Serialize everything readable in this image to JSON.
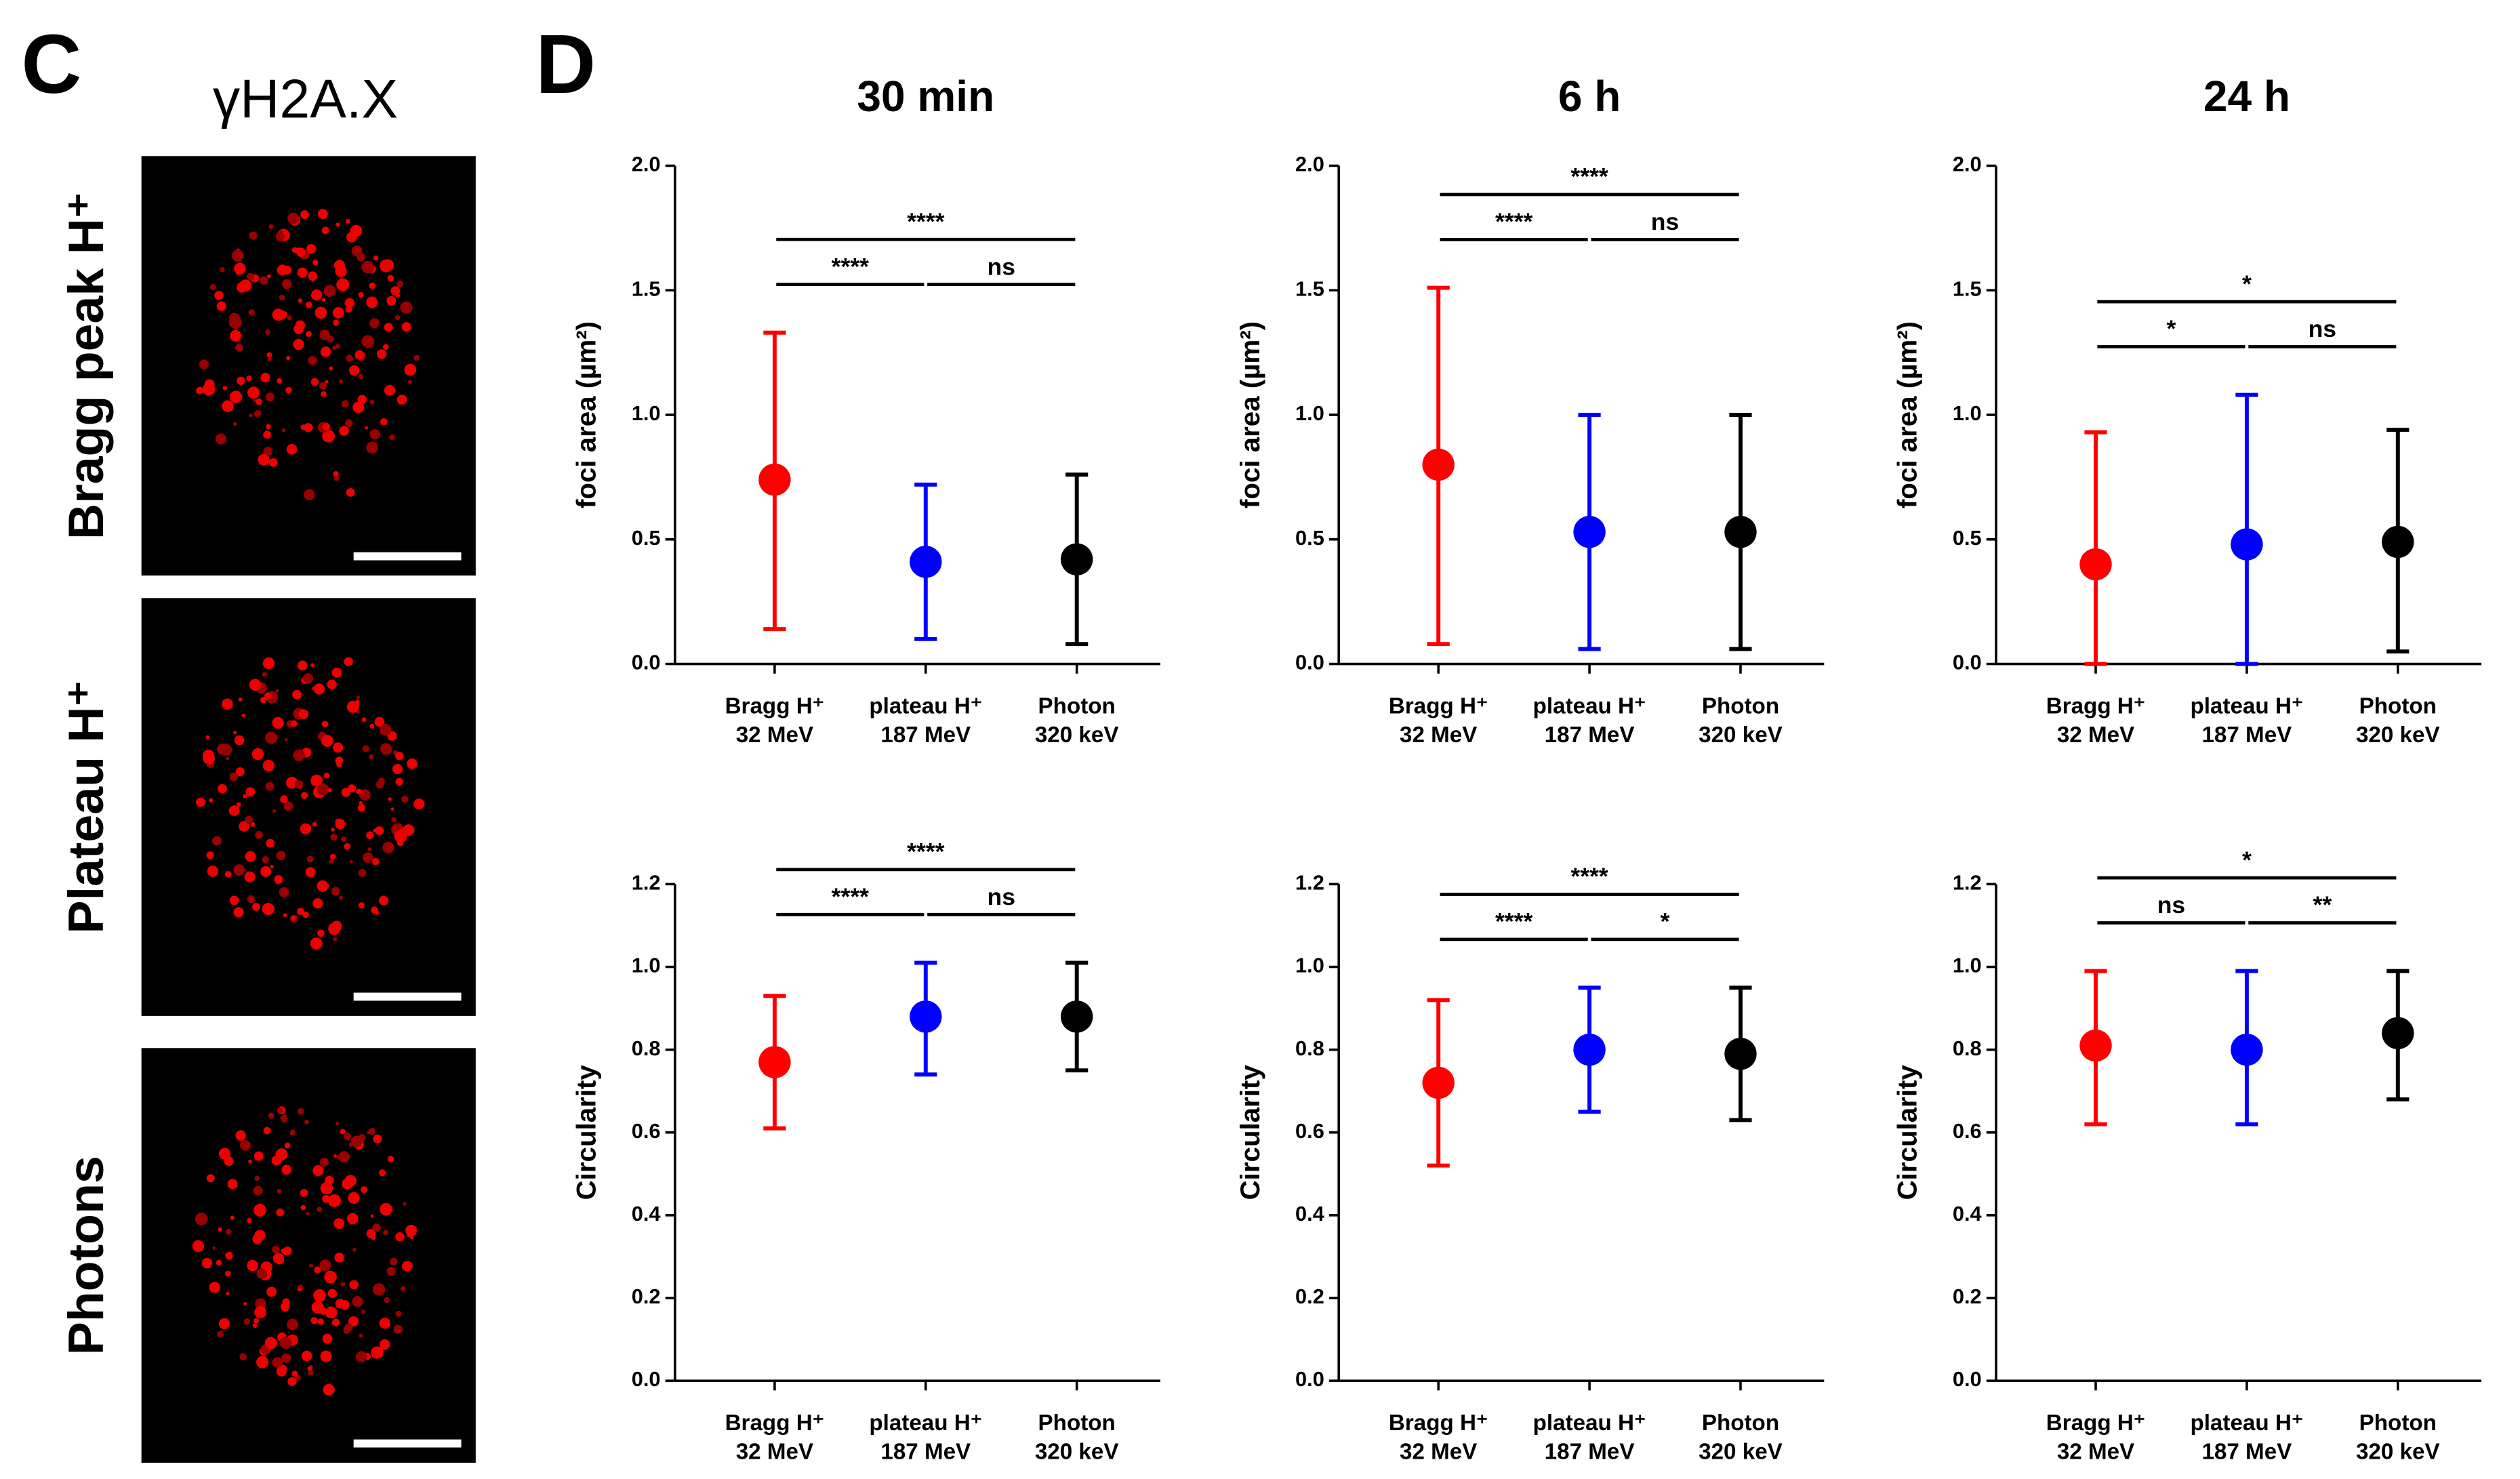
{
  "panels": {
    "left_label": "C",
    "marker": "γH2A.X",
    "rows": [
      "Bragg peak H⁺",
      "Plateau H⁺",
      "Photons"
    ],
    "right_label": "D"
  },
  "chart_data": [
    {
      "type": "errorbar",
      "title": "30 min",
      "ylabel": "foci area (µm²)",
      "categories": [
        "Bragg H⁺",
        "plateau H⁺",
        "Photon"
      ],
      "category_sublabels": [
        "32 MeV",
        "187 MeV",
        "320 keV"
      ],
      "colors": [
        "#ff0000",
        "#0000ff",
        "#000000"
      ],
      "values": [
        0.74,
        0.41,
        0.42
      ],
      "lower": [
        0.14,
        0.1,
        0.08
      ],
      "upper": [
        1.33,
        0.72,
        0.76
      ],
      "ylim": [
        0,
        2
      ],
      "yticks": [
        {
          "value": 0,
          "label": "0.0"
        },
        {
          "value": 0.5,
          "label": "0.5"
        },
        {
          "value": 1,
          "label": "1.0"
        },
        {
          "value": 1.5,
          "label": "1.5"
        },
        {
          "value": 2,
          "label": "2.0"
        }
      ],
      "comparisons": [
        {
          "from": 0,
          "to": 2,
          "label": "****"
        },
        {
          "from": 0,
          "to": 1,
          "label": "****"
        },
        {
          "from": 1,
          "to": 2,
          "label": "ns"
        }
      ]
    },
    {
      "type": "errorbar",
      "title": "6 h",
      "ylabel": "foci area (µm²)",
      "categories": [
        "Bragg H⁺",
        "plateau H⁺",
        "Photon"
      ],
      "category_sublabels": [
        "32 MeV",
        "187 MeV",
        "320 keV"
      ],
      "colors": [
        "#ff0000",
        "#0000ff",
        "#000000"
      ],
      "values": [
        0.8,
        0.53,
        0.53
      ],
      "lower": [
        0.08,
        0.06,
        0.06
      ],
      "upper": [
        1.51,
        1.0,
        1.0
      ],
      "ylim": [
        0,
        2
      ],
      "yticks": [
        {
          "value": 0,
          "label": "0.0"
        },
        {
          "value": 0.5,
          "label": "0.5"
        },
        {
          "value": 1,
          "label": "1.0"
        },
        {
          "value": 1.5,
          "label": "1.5"
        },
        {
          "value": 2,
          "label": "2.0"
        }
      ],
      "comparisons": [
        {
          "from": 0,
          "to": 2,
          "label": "****"
        },
        {
          "from": 0,
          "to": 1,
          "label": "****"
        },
        {
          "from": 1,
          "to": 2,
          "label": "ns"
        }
      ]
    },
    {
      "type": "errorbar",
      "title": "24 h",
      "ylabel": "foci area (µm²)",
      "categories": [
        "Bragg H⁺",
        "plateau H⁺",
        "Photon"
      ],
      "category_sublabels": [
        "32 MeV",
        "187 MeV",
        "320 keV"
      ],
      "colors": [
        "#ff0000",
        "#0000ff",
        "#000000"
      ],
      "values": [
        0.4,
        0.48,
        0.49
      ],
      "lower": [
        0,
        0,
        0.05
      ],
      "upper": [
        0.93,
        1.08,
        0.94
      ],
      "ylim": [
        0,
        2
      ],
      "yticks": [
        {
          "value": 0,
          "label": "0.0"
        },
        {
          "value": 0.5,
          "label": "0.5"
        },
        {
          "value": 1,
          "label": "1.0"
        },
        {
          "value": 1.5,
          "label": "1.5"
        },
        {
          "value": 2,
          "label": "2.0"
        }
      ],
      "comparisons": [
        {
          "from": 0,
          "to": 2,
          "label": "*"
        },
        {
          "from": 0,
          "to": 1,
          "label": "*"
        },
        {
          "from": 1,
          "to": 2,
          "label": "ns"
        }
      ]
    },
    {
      "type": "errorbar",
      "ylabel": "Circularity",
      "categories": [
        "Bragg H⁺",
        "plateau H⁺",
        "Photon"
      ],
      "category_sublabels": [
        "32 MeV",
        "187 MeV",
        "320 keV"
      ],
      "colors": [
        "#ff0000",
        "#0000ff",
        "#000000"
      ],
      "values": [
        0.77,
        0.88,
        0.88
      ],
      "lower": [
        0.61,
        0.74,
        0.75
      ],
      "upper": [
        0.93,
        1.01,
        1.01
      ],
      "ylim": [
        0,
        1.2
      ],
      "yticks": [
        {
          "value": 0,
          "label": "0.0"
        },
        0.2,
        0.4,
        0.6,
        0.8,
        {
          "value": 1,
          "label": "1.0"
        },
        1.2
      ],
      "comparisons": [
        {
          "from": 0,
          "to": 2,
          "label": "****"
        },
        {
          "from": 0,
          "to": 1,
          "label": "****"
        },
        {
          "from": 1,
          "to": 2,
          "label": "ns"
        }
      ]
    },
    {
      "type": "errorbar",
      "ylabel": "Circularity",
      "categories": [
        "Bragg H⁺",
        "plateau H⁺",
        "Photon"
      ],
      "category_sublabels": [
        "32 MeV",
        "187 MeV",
        "320 keV"
      ],
      "colors": [
        "#ff0000",
        "#0000ff",
        "#000000"
      ],
      "values": [
        0.72,
        0.8,
        0.79
      ],
      "lower": [
        0.52,
        0.65,
        0.63
      ],
      "upper": [
        0.92,
        0.95,
        0.95
      ],
      "ylim": [
        0,
        1.2
      ],
      "yticks": [
        {
          "value": 0,
          "label": "0.0"
        },
        0.2,
        0.4,
        0.6,
        0.8,
        {
          "value": 1,
          "label": "1.0"
        },
        1.2
      ],
      "comparisons": [
        {
          "from": 0,
          "to": 2,
          "label": "****"
        },
        {
          "from": 0,
          "to": 1,
          "label": "****"
        },
        {
          "from": 1,
          "to": 2,
          "label": "*"
        }
      ]
    },
    {
      "type": "errorbar",
      "ylabel": "Circularity",
      "categories": [
        "Bragg H⁺",
        "plateau H⁺",
        "Photon"
      ],
      "category_sublabels": [
        "32 MeV",
        "187 MeV",
        "320 keV"
      ],
      "colors": [
        "#ff0000",
        "#0000ff",
        "#000000"
      ],
      "values": [
        0.81,
        0.8,
        0.84
      ],
      "lower": [
        0.62,
        0.62,
        0.68
      ],
      "upper": [
        0.99,
        0.99,
        0.99
      ],
      "ylim": [
        0,
        1.2
      ],
      "yticks": [
        {
          "value": 0,
          "label": "0.0"
        },
        0.2,
        0.4,
        0.6,
        0.8,
        {
          "value": 1,
          "label": "1.0"
        },
        1.2
      ],
      "comparisons": [
        {
          "from": 0,
          "to": 2,
          "label": "*"
        },
        {
          "from": 0,
          "to": 1,
          "label": "ns"
        },
        {
          "from": 1,
          "to": 2,
          "label": "**"
        }
      ]
    }
  ]
}
